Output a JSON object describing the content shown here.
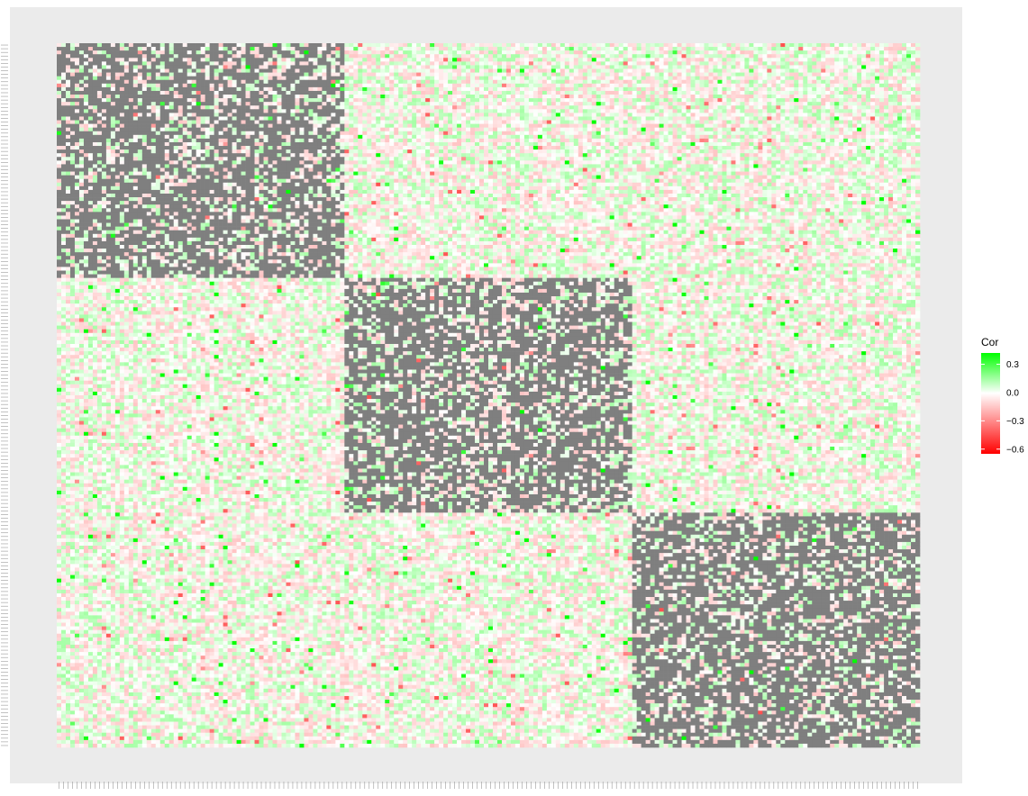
{
  "chart_data": {
    "type": "heatmap",
    "title": "",
    "xlabel": "",
    "ylabel": "",
    "n_variables": 192,
    "cluster_breaks": [
      0,
      64,
      128,
      192
    ],
    "within_cluster_value": "NA (grey)",
    "colors": {
      "low": "#ff0000",
      "mid": "#ffffff",
      "high": "#00ff00",
      "na": "#7f7f7f",
      "panel": "#ebebeb"
    },
    "legend": {
      "title": "Cor",
      "placement": "right",
      "limits": [
        -0.65,
        0.42
      ],
      "breaks": [
        0.3,
        0.0,
        -0.3,
        -0.6
      ],
      "labels": [
        "0.3",
        "0.0",
        "−0.3",
        "−0.6"
      ]
    },
    "summary_values": {
      "between_cluster_typical_range": [
        -0.15,
        0.15
      ],
      "min": -0.62,
      "max": 0.4
    },
    "tick_labels_note": "192 variable-name tick labels per axis are rendered too small to read"
  }
}
